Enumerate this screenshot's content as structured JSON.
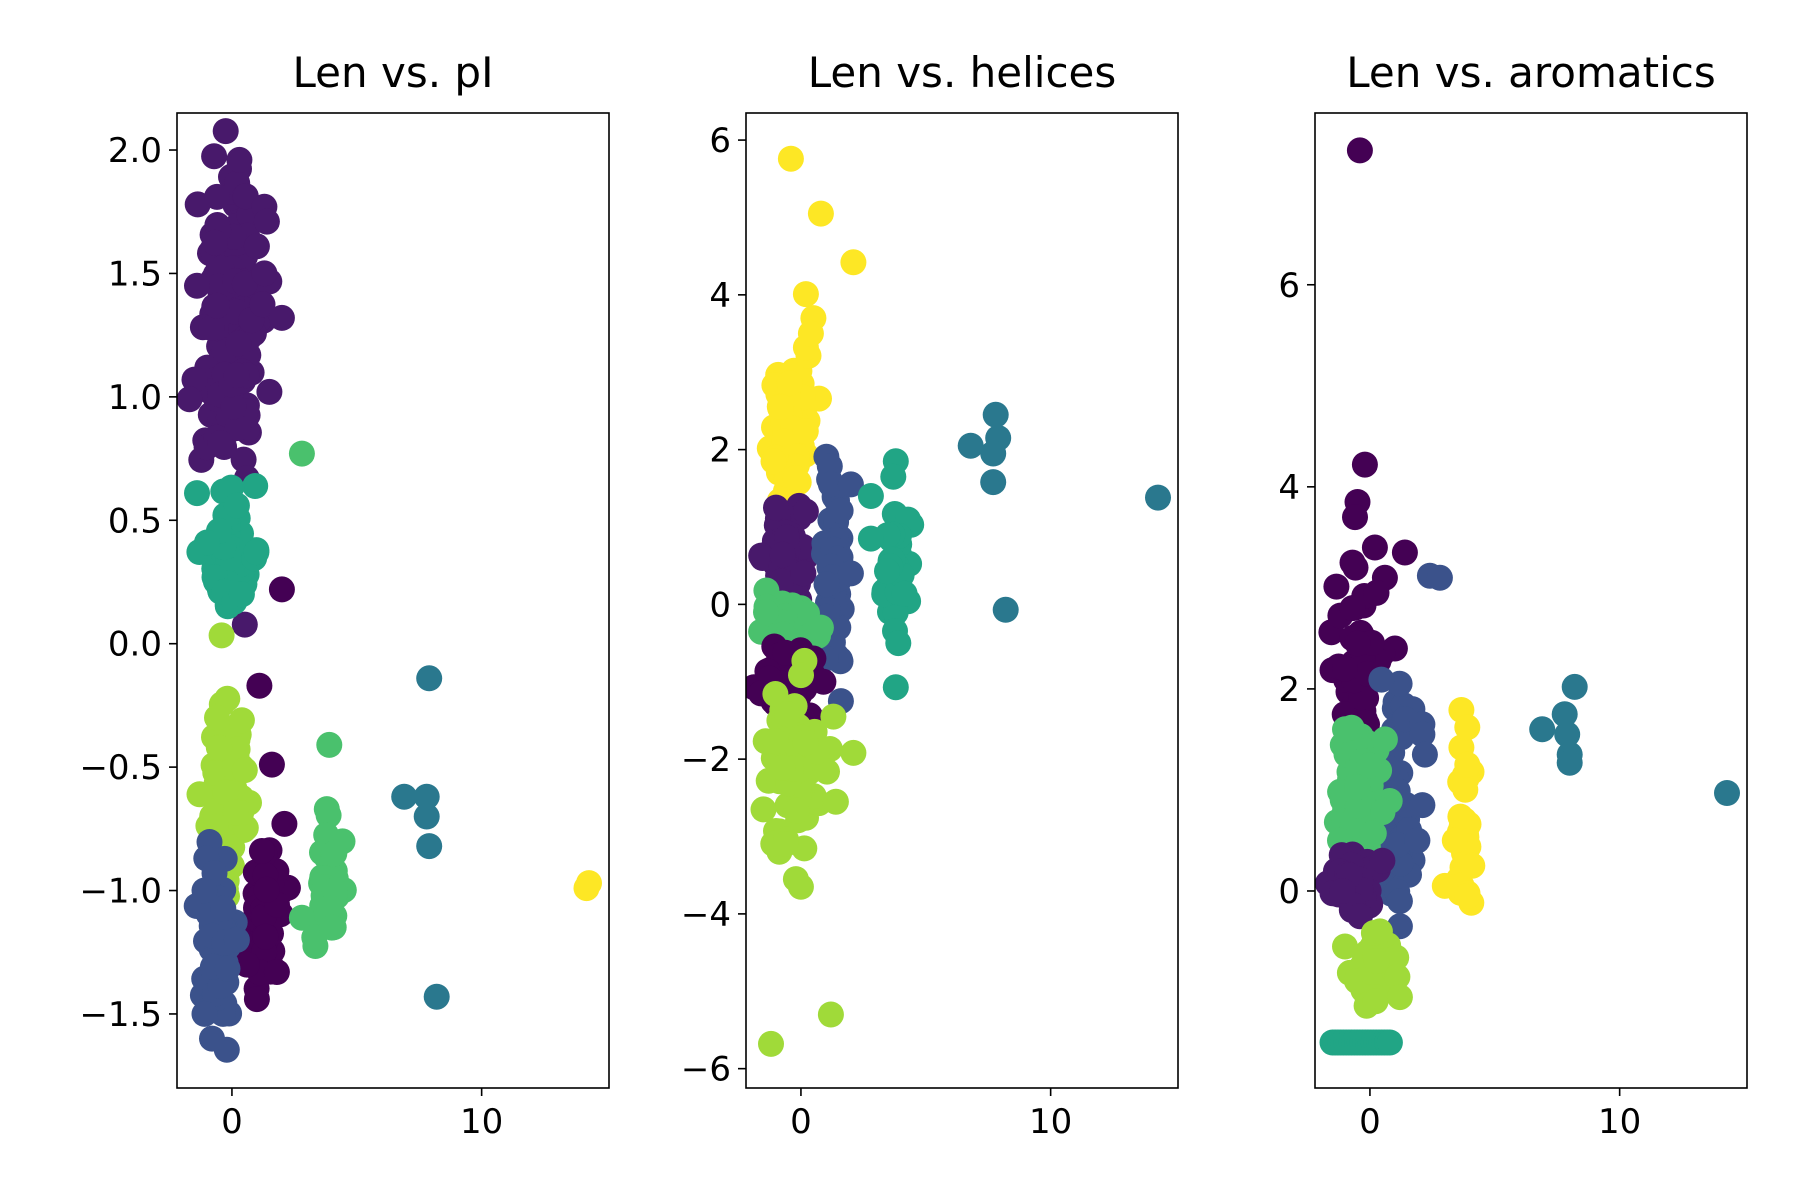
{
  "chart_data": [
    {
      "type": "scatter",
      "title": "Len vs. pI",
      "xlim": [
        -2.2,
        15.1
      ],
      "ylim": [
        -1.8,
        2.15
      ],
      "xticks": [
        0,
        10
      ],
      "yticks": [
        -1.5,
        -1.0,
        -0.5,
        0.0,
        0.5,
        1.0,
        1.5,
        2.0
      ],
      "ytick_labels": [
        "−1.5",
        "−1.0",
        "−0.5",
        "0.0",
        "0.5",
        "1.0",
        "1.5",
        "2.0"
      ],
      "clusters": [
        {
          "color": "#48196b",
          "pattern": "cloud",
          "center": [
            -0.05,
            1.25
          ],
          "spread": [
            0.6,
            0.33
          ],
          "count": 150,
          "points": [
            [
              0.3,
              1.96
            ],
            [
              -0.6,
              1.81
            ],
            [
              1.3,
              1.77
            ],
            [
              1.4,
              1.71
            ],
            [
              1.0,
              1.61
            ],
            [
              1.3,
              1.5
            ],
            [
              2.0,
              1.32
            ],
            [
              1.5,
              1.02
            ],
            [
              0.6,
              0.67
            ],
            [
              -1.4,
              1.45
            ],
            [
              -1.5,
              1.07
            ],
            [
              -1.7,
              0.99
            ]
          ]
        },
        {
          "color": "#21a585",
          "pattern": "cloud",
          "center": [
            0.0,
            0.38
          ],
          "spread": [
            0.45,
            0.13
          ],
          "count": 55,
          "points": [
            [
              -1.4,
              0.61
            ],
            [
              -1.0,
              0.41
            ],
            [
              -0.7,
              0.27
            ],
            [
              -0.3,
              0.21
            ],
            [
              0.1,
              0.17
            ],
            [
              0.4,
              0.2
            ],
            [
              0.2,
              0.56
            ]
          ]
        },
        {
          "color": "#4ac16d",
          "pattern": "points",
          "points": [
            [
              2.8,
              0.77
            ]
          ]
        },
        {
          "color": "#440154",
          "pattern": "points",
          "points": [
            [
              2.0,
              0.22
            ],
            [
              1.1,
              -0.17
            ],
            [
              1.6,
              -0.49
            ],
            [
              2.1,
              -0.73
            ]
          ]
        },
        {
          "color": "#2a788e",
          "pattern": "points",
          "points": [
            [
              7.9,
              -0.14
            ],
            [
              6.9,
              -0.62
            ],
            [
              7.8,
              -0.62
            ],
            [
              7.8,
              -0.7
            ],
            [
              7.9,
              -0.82
            ],
            [
              8.2,
              -1.43
            ]
          ]
        },
        {
          "color": "#a0da39",
          "pattern": "cloud",
          "center": [
            -0.2,
            -0.62
          ],
          "spread": [
            0.4,
            0.18
          ],
          "count": 70,
          "points": [
            [
              -1.3,
              -0.61
            ],
            [
              -0.6,
              -0.3
            ],
            [
              0.4,
              -0.31
            ],
            [
              0.0,
              -0.9
            ]
          ]
        },
        {
          "color": "#440154",
          "pattern": "cloud",
          "center": [
            1.3,
            -1.13
          ],
          "spread": [
            0.32,
            0.14
          ],
          "count": 55,
          "points": [
            [
              1.2,
              -0.84
            ],
            [
              1.0,
              -1.44
            ],
            [
              1.8,
              -1.33
            ],
            [
              0.6,
              -1.3
            ]
          ]
        },
        {
          "color": "#3b528b",
          "pattern": "cloud",
          "center": [
            -0.6,
            -1.25
          ],
          "spread": [
            0.25,
            0.15
          ],
          "count": 60,
          "points": [
            [
              -0.7,
              -0.93
            ],
            [
              -1.1,
              -1.0
            ],
            [
              -0.8,
              -1.6
            ],
            [
              -1.1,
              -1.5
            ],
            [
              0.2,
              -1.2
            ]
          ]
        },
        {
          "color": "#4ac16d",
          "pattern": "cloud",
          "center": [
            3.8,
            -1.0
          ],
          "spread": [
            0.25,
            0.12
          ],
          "count": 35,
          "points": [
            [
              3.9,
              -0.41
            ],
            [
              3.8,
              -0.67
            ],
            [
              4.1,
              -0.85
            ],
            [
              2.8,
              -1.11
            ],
            [
              3.3,
              -1.19
            ],
            [
              4.0,
              -1.15
            ]
          ]
        },
        {
          "color": "#fde725",
          "pattern": "points",
          "points": [
            [
              14.3,
              -0.97
            ],
            [
              14.2,
              -0.99
            ]
          ]
        }
      ]
    },
    {
      "type": "scatter",
      "title": "Len vs. helices",
      "xlim": [
        -2.2,
        15.1
      ],
      "ylim": [
        -6.25,
        6.35
      ],
      "xticks": [
        0,
        10
      ],
      "yticks": [
        -6,
        -4,
        -2,
        0,
        2,
        4,
        6
      ],
      "ytick_labels": [
        "−6",
        "−4",
        "−2",
        "0",
        "2",
        "4",
        "6"
      ],
      "clusters": [
        {
          "color": "#fde725",
          "pattern": "cloud",
          "center": [
            -0.4,
            2.2
          ],
          "spread": [
            0.35,
            0.5
          ],
          "count": 70,
          "points": [
            [
              -0.4,
              5.76
            ],
            [
              0.8,
              5.05
            ],
            [
              2.1,
              4.42
            ],
            [
              0.2,
              4.01
            ],
            [
              0.5,
              3.7
            ],
            [
              0.4,
              3.5
            ],
            [
              -0.8,
              2.55
            ],
            [
              -1.1,
              1.85
            ]
          ]
        },
        {
          "color": "#48196b",
          "pattern": "cloud",
          "center": [
            -0.5,
            0.65
          ],
          "spread": [
            0.4,
            0.3
          ],
          "count": 60,
          "points": [
            [
              -1.0,
              1.25
            ],
            [
              0.2,
              1.2
            ],
            [
              -0.8,
              0.3
            ],
            [
              0.1,
              0.4
            ]
          ]
        },
        {
          "color": "#3b528b",
          "pattern": "cloud",
          "center": [
            1.3,
            0.2
          ],
          "spread": [
            0.25,
            0.65
          ],
          "count": 70,
          "points": [
            [
              1.2,
              1.55
            ],
            [
              2.0,
              1.55
            ],
            [
              1.6,
              -1.25
            ],
            [
              2.0,
              0.4
            ],
            [
              1.0,
              -0.7
            ]
          ]
        },
        {
          "color": "#4ac16d",
          "pattern": "cloud",
          "center": [
            -0.5,
            -0.25
          ],
          "spread": [
            0.45,
            0.18
          ],
          "count": 50,
          "points": [
            [
              -1.4,
              -0.1
            ],
            [
              0.8,
              -0.3
            ]
          ]
        },
        {
          "color": "#440154",
          "pattern": "cloud",
          "center": [
            -0.7,
            -1.05
          ],
          "spread": [
            0.45,
            0.2
          ],
          "count": 55,
          "points": [
            [
              -1.6,
              -1.15
            ],
            [
              0.5,
              -0.7
            ],
            [
              0.9,
              -1.0
            ]
          ]
        },
        {
          "color": "#a0da39",
          "pattern": "cloud",
          "center": [
            -0.3,
            -2.1
          ],
          "spread": [
            0.5,
            0.55
          ],
          "count": 80,
          "points": [
            [
              -1.5,
              -2.65
            ],
            [
              -0.2,
              -3.55
            ],
            [
              0.0,
              -3.65
            ],
            [
              1.4,
              -2.55
            ],
            [
              2.1,
              -1.92
            ],
            [
              -1.2,
              -5.68
            ],
            [
              1.2,
              -5.3
            ],
            [
              1.3,
              -1.45
            ]
          ]
        },
        {
          "color": "#21a585",
          "pattern": "cloud",
          "center": [
            3.8,
            0.4
          ],
          "spread": [
            0.25,
            0.45
          ],
          "count": 40,
          "points": [
            [
              3.8,
              1.85
            ],
            [
              3.7,
              1.65
            ],
            [
              2.8,
              1.4
            ],
            [
              2.8,
              0.85
            ],
            [
              3.8,
              -1.07
            ],
            [
              3.9,
              -0.5
            ]
          ]
        },
        {
          "color": "#2a788e",
          "pattern": "points",
          "points": [
            [
              7.8,
              2.45
            ],
            [
              6.8,
              2.05
            ],
            [
              7.9,
              2.15
            ],
            [
              7.7,
              1.95
            ],
            [
              7.7,
              1.58
            ],
            [
              8.2,
              -0.07
            ],
            [
              14.3,
              1.38
            ]
          ]
        }
      ]
    },
    {
      "type": "scatter",
      "title": "Len vs. aromatics",
      "xlim": [
        -2.2,
        15.1
      ],
      "ylim": [
        -1.95,
        7.7
      ],
      "xticks": [
        0,
        10
      ],
      "yticks": [
        0,
        2,
        4,
        6
      ],
      "ytick_labels": [
        "0",
        "2",
        "4",
        "6"
      ],
      "clusters": [
        {
          "color": "#440154",
          "pattern": "points",
          "points": [
            [
              -0.4,
              7.33
            ],
            [
              -0.2,
              4.22
            ],
            [
              -0.5,
              3.85
            ],
            [
              -0.6,
              3.7
            ],
            [
              -0.7,
              3.25
            ],
            [
              1.4,
              3.35
            ],
            [
              0.6,
              3.1
            ],
            [
              1.0,
              2.4
            ],
            [
              0.5,
              2.35
            ]
          ]
        },
        {
          "color": "#440154",
          "pattern": "cloud",
          "center": [
            -0.5,
            2.2
          ],
          "spread": [
            0.35,
            0.45
          ],
          "count": 50,
          "points": [
            [
              -0.7,
              2.8
            ],
            [
              0.2,
              3.4
            ],
            [
              -1.0,
              2.2
            ]
          ]
        },
        {
          "color": "#3b528b",
          "pattern": "cloud",
          "center": [
            0.9,
            0.75
          ],
          "spread": [
            0.35,
            0.5
          ],
          "count": 60,
          "points": [
            [
              1.7,
              1.8
            ],
            [
              1.4,
              1.7
            ],
            [
              2.1,
              1.65
            ],
            [
              2.1,
              1.55
            ],
            [
              2.2,
              1.35
            ],
            [
              2.1,
              0.85
            ],
            [
              1.9,
              0.5
            ],
            [
              1.2,
              -0.1
            ],
            [
              1.2,
              -0.35
            ],
            [
              2.4,
              3.12
            ],
            [
              2.8,
              3.1
            ]
          ]
        },
        {
          "color": "#4ac16d",
          "pattern": "cloud",
          "center": [
            -0.4,
            0.95
          ],
          "spread": [
            0.45,
            0.35
          ],
          "count": 90,
          "points": [
            [
              -1.0,
              1.6
            ],
            [
              0.6,
              1.5
            ],
            [
              -1.2,
              0.5
            ]
          ]
        },
        {
          "color": "#48196b",
          "pattern": "cloud",
          "center": [
            -0.5,
            0.05
          ],
          "spread": [
            0.45,
            0.15
          ],
          "count": 45,
          "points": [
            [
              -1.1,
              0.0
            ],
            [
              -0.4,
              -0.25
            ],
            [
              0.5,
              0.3
            ]
          ]
        },
        {
          "color": "#a0da39",
          "pattern": "cloud",
          "center": [
            0.2,
            -0.75
          ],
          "spread": [
            0.4,
            0.15
          ],
          "count": 50,
          "points": [
            [
              -1.0,
              -0.55
            ],
            [
              1.1,
              -0.85
            ],
            [
              1.2,
              -1.05
            ],
            [
              0.4,
              -0.4
            ]
          ]
        },
        {
          "color": "#21a585",
          "pattern": "row",
          "y": -1.5,
          "x_from": -1.5,
          "x_to": 0.8,
          "count": 22,
          "points": []
        },
        {
          "color": "#fde725",
          "pattern": "cloud",
          "center": [
            3.8,
            0.6
          ],
          "spread": [
            0.15,
            0.4
          ],
          "count": 30,
          "points": [
            [
              3.9,
              1.62
            ],
            [
              3.9,
              1.25
            ],
            [
              3.0,
              0.05
            ],
            [
              3.4,
              0.5
            ],
            [
              3.9,
              -0.05
            ],
            [
              4.1,
              0.25
            ]
          ]
        },
        {
          "color": "#2a788e",
          "pattern": "points",
          "points": [
            [
              6.9,
              1.6
            ],
            [
              7.8,
              1.75
            ],
            [
              7.9,
              1.55
            ],
            [
              8.2,
              2.02
            ],
            [
              8.0,
              1.35
            ],
            [
              8.0,
              1.27
            ],
            [
              14.3,
              0.97
            ]
          ]
        }
      ]
    }
  ]
}
